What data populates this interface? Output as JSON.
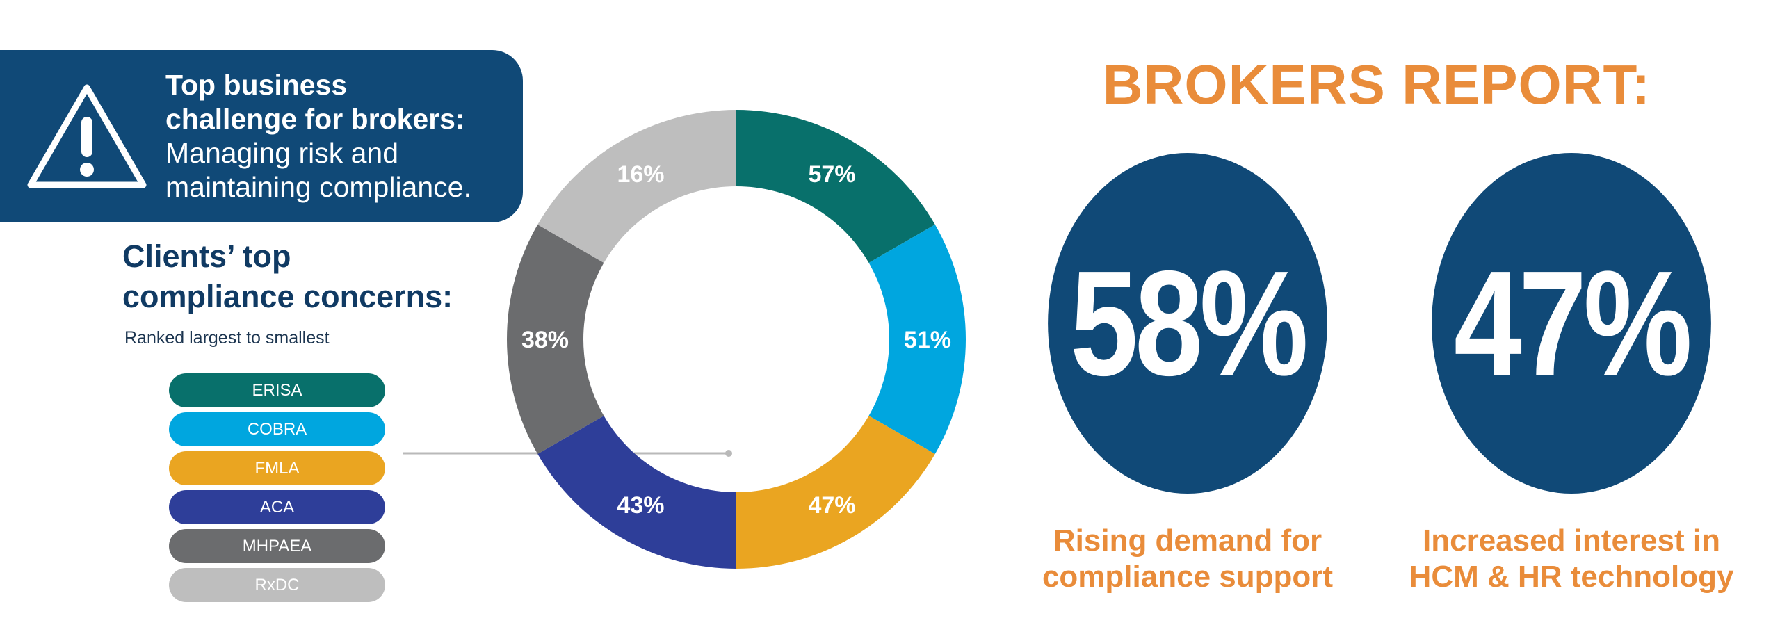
{
  "banner": {
    "title_line1": "Top business",
    "title_line2": "challenge for brokers:",
    "subtitle_line1": "Managing risk and",
    "subtitle_line2": "maintaining compliance."
  },
  "concerns": {
    "title_line1": "Clients’ top",
    "title_line2": "compliance concerns:",
    "subtitle": "Ranked largest to smallest"
  },
  "legend": [
    {
      "label": "ERISA",
      "color": "#08706b"
    },
    {
      "label": "COBRA",
      "color": "#00a6df"
    },
    {
      "label": "FMLA",
      "color": "#eaa521"
    },
    {
      "label": "ACA",
      "color": "#2e3e99"
    },
    {
      "label": "MHPAEA",
      "color": "#6b6c6e"
    },
    {
      "label": "RxDC",
      "color": "#bebebe"
    }
  ],
  "chart_data": {
    "type": "pie",
    "donut": true,
    "categories": [
      "ERISA",
      "COBRA",
      "FMLA",
      "ACA",
      "MHPAEA",
      "RxDC"
    ],
    "values": [
      57,
      51,
      47,
      43,
      38,
      16
    ],
    "labels": [
      "57%",
      "51%",
      "47%",
      "43%",
      "38%",
      "16%"
    ],
    "colors": [
      "#08706b",
      "#00a6df",
      "#eaa521",
      "#2e3e99",
      "#6b6c6e",
      "#bebebe"
    ],
    "legend_position": "left"
  },
  "report": {
    "title": "BROKERS REPORT:",
    "stats": [
      {
        "value": "58%",
        "label_line1": "Rising demand for",
        "label_line2": "compliance support"
      },
      {
        "value": "47%",
        "label_line1": "Increased interest in",
        "label_line2": "HCM & HR technology"
      }
    ]
  },
  "colors": {
    "navy": "#104977",
    "orange": "#e98c3a"
  },
  "icons": {
    "banner": "warning-triangle-icon"
  }
}
